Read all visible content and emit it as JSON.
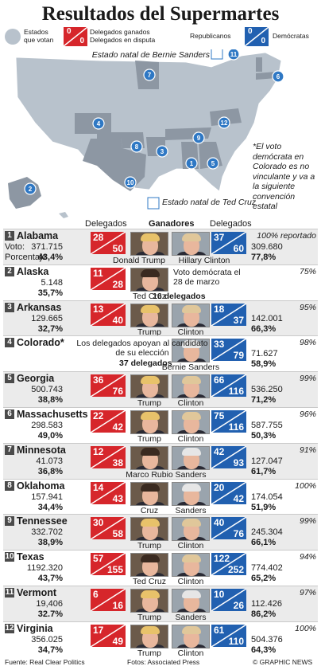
{
  "title": "Resultados del Supermartes",
  "legend": {
    "states_label": "Estados que votan",
    "won_label": "Delegados ganados",
    "disputed_label": "Delegados en disputa",
    "rep_label": "Republicanos",
    "dem_label": "Demócratas",
    "zero": "0"
  },
  "map": {
    "sanders_label": "Estado natal de Bernie Sanders",
    "cruz_label": "Estado natal de Ted Cruz",
    "markers": [
      "1",
      "2",
      "3",
      "4",
      "5",
      "6",
      "7",
      "8",
      "9",
      "10",
      "11",
      "12"
    ]
  },
  "note": "*El voto demócrata en Colorado es no vinculante y va a la siguiente convención estatal",
  "headers": {
    "delegados_left": "Delegados",
    "ganadores": "Ganadores",
    "delegados_right": "Delegados"
  },
  "labels": {
    "voto": "Voto:",
    "porcentaje": "Porcentaje"
  },
  "rows": [
    {
      "num": "1",
      "state": "Alabama",
      "r_won": "28",
      "r_disp": "50",
      "d_won": "37",
      "d_disp": "60",
      "r_votes": "371.715",
      "r_pct": "43,4%",
      "d_votes": "309.680",
      "d_pct": "77,8%",
      "report": "100% reportado",
      "r_name": "Donald Trump",
      "d_name": "Hillary Clinton"
    },
    {
      "num": "2",
      "state": "Alaska",
      "r_won": "11",
      "r_disp": "28",
      "r_votes": "5.148",
      "r_pct": "35,7%",
      "report": "75%",
      "r_name": "Ted Cruz",
      "dem_note": "Voto demócrata el 28 de marzo",
      "dels_note": "16 delegados"
    },
    {
      "num": "3",
      "state": "Arkansas",
      "r_won": "13",
      "r_disp": "40",
      "d_won": "18",
      "d_disp": "37",
      "r_votes": "129.665",
      "r_pct": "32,7%",
      "d_votes": "142.001",
      "d_pct": "66,3%",
      "report": "95%",
      "r_name": "Trump",
      "d_name": "Clinton"
    },
    {
      "num": "4",
      "state": "Colorado*",
      "d_won": "33",
      "d_disp": "79",
      "d_votes": "71.627",
      "d_pct": "58,9%",
      "report": "98%",
      "d_name": "Bernie Sanders",
      "rep_note": "Los delegados apoyan al candidato de su elección",
      "dels_note": "37 delegados"
    },
    {
      "num": "5",
      "state": "Georgia",
      "r_won": "36",
      "r_disp": "76",
      "d_won": "66",
      "d_disp": "116",
      "r_votes": "500.743",
      "r_pct": "38,8%",
      "d_votes": "536.250",
      "d_pct": "71,2%",
      "report": "99%",
      "r_name": "Trump",
      "d_name": "Clinton"
    },
    {
      "num": "6",
      "state": "Massachusetts",
      "r_won": "22",
      "r_disp": "42",
      "d_won": "75",
      "d_disp": "116",
      "r_votes": "298.583",
      "r_pct": "49,0%",
      "d_votes": "587.755",
      "d_pct": "50,3%",
      "report": "96%",
      "r_name": "Trump",
      "d_name": "Clinton"
    },
    {
      "num": "7",
      "state": "Minnesota",
      "r_won": "12",
      "r_disp": "38",
      "d_won": "42",
      "d_disp": "93",
      "r_votes": "41.073",
      "r_pct": "36,8%",
      "d_votes": "127.047",
      "d_pct": "61,7%",
      "report": "91%",
      "r_name": "Marco Rubio",
      "d_name": "Sanders"
    },
    {
      "num": "8",
      "state": "Oklahoma",
      "r_won": "14",
      "r_disp": "43",
      "d_won": "20",
      "d_disp": "42",
      "r_votes": "157.941",
      "r_pct": "34,4%",
      "d_votes": "174.054",
      "d_pct": "51,9%",
      "report": "100%",
      "r_name": "Cruz",
      "d_name": "Sanders"
    },
    {
      "num": "9",
      "state": "Tennessee",
      "r_won": "30",
      "r_disp": "58",
      "d_won": "40",
      "d_disp": "76",
      "r_votes": "332.702",
      "r_pct": "38,9%",
      "d_votes": "245.304",
      "d_pct": "66,1%",
      "report": "99%",
      "r_name": "Trump",
      "d_name": "Clinton"
    },
    {
      "num": "10",
      "state": "Texas",
      "r_won": "57",
      "r_disp": "155",
      "d_won": "122",
      "d_disp": "252",
      "r_votes": "1192.320",
      "r_pct": "43,7%",
      "d_votes": "774.402",
      "d_pct": "65,2%",
      "report": "94%",
      "r_name": "Ted Cruz",
      "d_name": "Clinton"
    },
    {
      "num": "11",
      "state": "Vermont",
      "r_won": "6",
      "r_disp": "16",
      "d_won": "10",
      "d_disp": "26",
      "r_votes": "19,406",
      "r_pct": "32.7%",
      "d_votes": "112.426",
      "d_pct": "86,2%",
      "report": "97%",
      "r_name": "Trump",
      "d_name": "Sanders"
    },
    {
      "num": "12",
      "state": "Virginia",
      "r_won": "17",
      "r_disp": "49",
      "d_won": "61",
      "d_disp": "110",
      "r_votes": "356.025",
      "r_pct": "34,7%",
      "d_votes": "504.376",
      "d_pct": "64,3%",
      "report": "100%",
      "r_name": "Trump",
      "d_name": "Clinton"
    }
  ],
  "footer": {
    "source": "Fuente: Real Clear Politics",
    "photos": "Fotos: Associated Press",
    "credit": "© GRAPHIC NEWS"
  },
  "colors": {
    "rep": "#d6262b",
    "dem": "#2160b0",
    "map_state": "#b8c2cc",
    "map_vote": "#8d97a3",
    "marker": "#2f78c4"
  }
}
